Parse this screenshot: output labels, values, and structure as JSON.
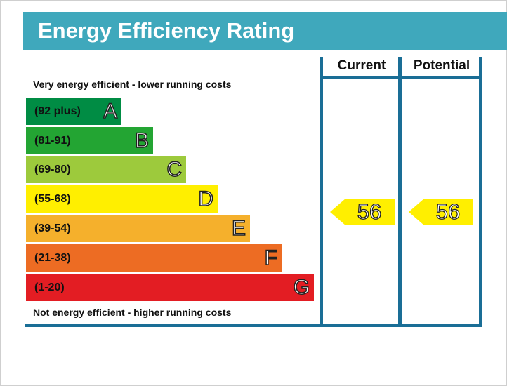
{
  "title": "Energy Efficiency Rating",
  "captions": {
    "top": "Very energy efficient - lower running costs",
    "bottom": "Not energy efficient - higher running costs"
  },
  "columns": {
    "current": "Current",
    "potential": "Potential"
  },
  "chart_data": {
    "type": "table",
    "title": "Energy Efficiency Rating",
    "bands": [
      {
        "range": "(92 plus)",
        "letter": "A",
        "color": "#008c44"
      },
      {
        "range": "(81-91)",
        "letter": "B",
        "color": "#23a533"
      },
      {
        "range": "(69-80)",
        "letter": "C",
        "color": "#9dca3c"
      },
      {
        "range": "(55-68)",
        "letter": "D",
        "color": "#ffef00"
      },
      {
        "range": "(39-54)",
        "letter": "E",
        "color": "#f5b02c"
      },
      {
        "range": "(21-38)",
        "letter": "F",
        "color": "#ed6c23"
      },
      {
        "range": "(1-20)",
        "letter": "G",
        "color": "#e31d23"
      }
    ],
    "current": {
      "value": "56",
      "band": "D",
      "color": "#ffef00"
    },
    "potential": {
      "value": "56",
      "band": "D",
      "color": "#ffef00"
    }
  }
}
